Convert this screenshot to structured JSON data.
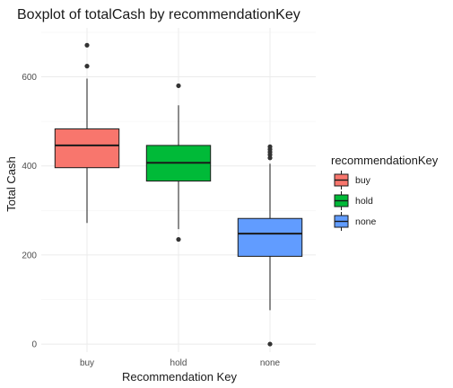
{
  "chart_data": {
    "type": "boxplot",
    "title": "Boxplot of totalCash by recommendationKey",
    "xlabel": "Recommendation Key",
    "ylabel": "Total Cash",
    "categories": [
      "buy",
      "hold",
      "none"
    ],
    "ylim": [
      -18,
      710
    ],
    "yticks": [
      0,
      200,
      400,
      600
    ],
    "grid": true,
    "legend": {
      "title": "recommendationKey",
      "position": "right",
      "entries": [
        "buy",
        "hold",
        "none"
      ]
    },
    "boxes": [
      {
        "category": "buy",
        "color": "#F8766D",
        "whisker_low": 272,
        "q1": 396,
        "median": 446,
        "q3": 483,
        "whisker_high": 596,
        "outliers": [
          624,
          671
        ]
      },
      {
        "category": "hold",
        "color": "#00BA38",
        "whisker_low": 258,
        "q1": 366,
        "median": 407,
        "q3": 446,
        "whisker_high": 536,
        "outliers": [
          235,
          580
        ]
      },
      {
        "category": "none",
        "color": "#619CFF",
        "whisker_low": 76,
        "q1": 197,
        "median": 248,
        "q3": 282,
        "whisker_high": 405,
        "outliers": [
          0,
          418,
          425,
          431,
          437,
          443
        ]
      }
    ]
  }
}
